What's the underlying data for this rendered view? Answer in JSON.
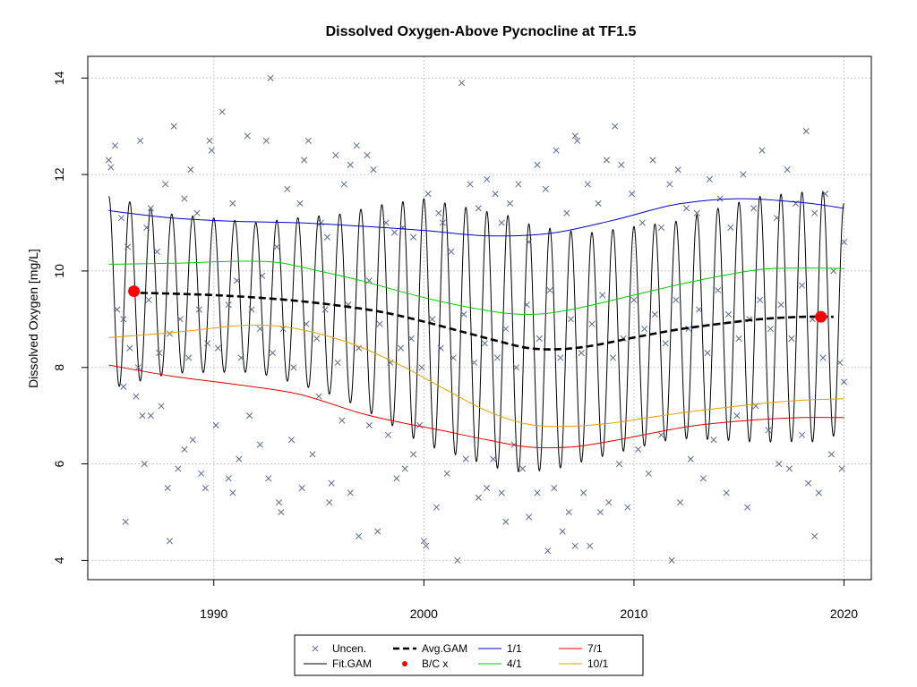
{
  "chart_data": {
    "type": "line",
    "title": "Dissolved Oxygen-Above Pycnocline at TF1.5",
    "xlabel": "",
    "ylabel": "Dissolved Oxygen [mg/L]",
    "xlim": [
      1984,
      2021.3
    ],
    "ylim": [
      3.6,
      14.45
    ],
    "xticks": [
      1990,
      2000,
      2010,
      2020
    ],
    "yticks": [
      4,
      6,
      8,
      10,
      12,
      14
    ],
    "grid": true,
    "legend_position": "bottom",
    "legend": [
      {
        "label": "Uncen.",
        "kind": "cross",
        "color": "#5a6a8a"
      },
      {
        "label": "Fit.GAM",
        "kind": "line",
        "color": "#000000"
      },
      {
        "label": "Avg.GAM",
        "kind": "dashed",
        "color": "#000000"
      },
      {
        "label": "B/C x",
        "kind": "dot",
        "color": "#ff0000"
      },
      {
        "label": "1/1",
        "kind": "line",
        "color": "#0000cc"
      },
      {
        "label": "4/1",
        "kind": "line",
        "color": "#00cc00"
      },
      {
        "label": "7/1",
        "kind": "line",
        "color": "#dd0000"
      },
      {
        "label": "10/1",
        "kind": "line",
        "color": "#e6a000"
      }
    ],
    "series": [
      {
        "name": "1/1",
        "color": "#0000cc",
        "x": [
          1985,
          1988,
          1991,
          1994,
          1997,
          2000,
          2003,
          2006,
          2009,
          2012,
          2015,
          2018,
          2020
        ],
        "y": [
          11.25,
          11.1,
          11.03,
          11.0,
          10.93,
          10.84,
          10.73,
          10.78,
          11.05,
          11.38,
          11.5,
          11.42,
          11.3
        ]
      },
      {
        "name": "4/1",
        "color": "#00cc00",
        "x": [
          1985,
          1988,
          1991,
          1993,
          1995,
          1997,
          2000,
          2003,
          2005,
          2007,
          2010,
          2013,
          2016,
          2018,
          2020
        ],
        "y": [
          10.14,
          10.16,
          10.2,
          10.18,
          10.0,
          9.8,
          9.45,
          9.18,
          9.1,
          9.2,
          9.5,
          9.8,
          10.03,
          10.06,
          10.05
        ]
      },
      {
        "name": "7/1",
        "color": "#dd0000",
        "x": [
          1985,
          1988,
          1991,
          1994,
          1997,
          1999,
          2001,
          2003,
          2005,
          2007,
          2009,
          2011,
          2013,
          2016,
          2018,
          2020
        ],
        "y": [
          8.05,
          7.82,
          7.65,
          7.45,
          7.05,
          6.85,
          6.68,
          6.5,
          6.35,
          6.35,
          6.48,
          6.65,
          6.8,
          6.92,
          6.96,
          6.96
        ]
      },
      {
        "name": "10/1",
        "color": "#e6a000",
        "x": [
          1985,
          1988,
          1991,
          1993,
          1995,
          1997,
          1999,
          2001,
          2003,
          2005,
          2007,
          2009,
          2011,
          2013,
          2016,
          2018,
          2020
        ],
        "y": [
          8.62,
          8.72,
          8.86,
          8.86,
          8.7,
          8.42,
          8.02,
          7.55,
          7.1,
          6.82,
          6.78,
          6.85,
          6.98,
          7.1,
          7.25,
          7.32,
          7.35
        ]
      },
      {
        "name": "Avg.GAM",
        "color": "#000000",
        "dashed": true,
        "x": [
          1986,
          1988,
          1990,
          1992,
          1994,
          1996,
          1998,
          2000,
          2002,
          2003.5,
          2005,
          2006.5,
          2008,
          2010,
          2012,
          2014,
          2016,
          2018,
          2019.5
        ],
        "y": [
          9.55,
          9.53,
          9.5,
          9.45,
          9.38,
          9.28,
          9.15,
          8.95,
          8.72,
          8.55,
          8.4,
          8.38,
          8.45,
          8.62,
          8.78,
          8.9,
          9.0,
          9.05,
          9.05
        ]
      },
      {
        "name": "Fit.GAM",
        "color": "#000000",
        "x_range": [
          1985,
          2020
        ],
        "seasonal_amplitude": [
          2.0,
          1.65,
          1.55,
          1.9,
          2.55,
          2.65,
          2.35,
          2.25,
          2.55,
          2.6,
          2.35
        ],
        "amplitude_years": [
          1985,
          1988,
          1992,
          1996,
          2000,
          2004,
          2008,
          2012,
          2016,
          2019,
          2020
        ]
      },
      {
        "name": "B/C x",
        "color": "#ff0000",
        "x": [
          1986.2,
          2018.9
        ],
        "y": [
          9.58,
          9.05
        ]
      }
    ],
    "points": [
      [
        1985.0,
        12.3
      ],
      [
        1985.1,
        12.15
      ],
      [
        1985.3,
        12.6
      ],
      [
        1985.6,
        11.1
      ],
      [
        1985.9,
        10.5
      ],
      [
        1986.1,
        9.6
      ],
      [
        1986.5,
        12.7
      ],
      [
        1986.8,
        10.9
      ],
      [
        1987.0,
        11.3
      ],
      [
        1987.3,
        10.4
      ],
      [
        1987.7,
        11.8
      ],
      [
        1988.1,
        13.0
      ],
      [
        1988.6,
        11.5
      ],
      [
        1988.9,
        12.1
      ],
      [
        1989.2,
        11.2
      ],
      [
        1989.8,
        12.7
      ],
      [
        1989.9,
        12.5
      ],
      [
        1990.4,
        13.3
      ],
      [
        1990.9,
        11.4
      ],
      [
        1991.1,
        9.8
      ],
      [
        1991.6,
        12.8
      ],
      [
        1992.3,
        9.9
      ],
      [
        1992.5,
        12.7
      ],
      [
        1992.7,
        14.0
      ],
      [
        1993.0,
        10.5
      ],
      [
        1993.5,
        11.7
      ],
      [
        1994.1,
        11.4
      ],
      [
        1994.3,
        12.3
      ],
      [
        1994.5,
        12.7
      ],
      [
        1995.1,
        11.0
      ],
      [
        1995.4,
        10.7
      ],
      [
        1995.8,
        12.4
      ],
      [
        1996.2,
        11.8
      ],
      [
        1996.5,
        12.2
      ],
      [
        1996.8,
        12.6
      ],
      [
        1997.3,
        12.4
      ],
      [
        1997.6,
        12.1
      ],
      [
        1998.2,
        11.0
      ],
      [
        1998.6,
        10.8
      ],
      [
        1999.0,
        10.9
      ],
      [
        1999.5,
        10.7
      ],
      [
        2000.2,
        11.6
      ],
      [
        2000.7,
        11.2
      ],
      [
        2000.9,
        11.0
      ],
      [
        2001.3,
        10.4
      ],
      [
        2001.8,
        13.9
      ],
      [
        2002.2,
        11.8
      ],
      [
        2002.6,
        11.3
      ],
      [
        2003.0,
        11.9
      ],
      [
        2003.4,
        11.6
      ],
      [
        2003.7,
        11.0
      ],
      [
        2004.1,
        11.4
      ],
      [
        2004.5,
        11.8
      ],
      [
        2005.0,
        10.6
      ],
      [
        2005.4,
        12.2
      ],
      [
        2005.8,
        11.7
      ],
      [
        2006.3,
        12.5
      ],
      [
        2006.8,
        11.2
      ],
      [
        2007.2,
        12.8
      ],
      [
        2007.3,
        12.7
      ],
      [
        2007.8,
        11.8
      ],
      [
        2008.3,
        11.4
      ],
      [
        2008.7,
        12.3
      ],
      [
        2009.1,
        13.0
      ],
      [
        2009.4,
        12.2
      ],
      [
        2009.9,
        11.6
      ],
      [
        2010.4,
        11.0
      ],
      [
        2010.9,
        12.3
      ],
      [
        2011.3,
        10.9
      ],
      [
        2011.7,
        11.8
      ],
      [
        2012.1,
        12.1
      ],
      [
        2012.5,
        11.3
      ],
      [
        2013.0,
        11.2
      ],
      [
        2013.6,
        11.9
      ],
      [
        2014.1,
        11.5
      ],
      [
        2014.6,
        10.9
      ],
      [
        2015.2,
        12.0
      ],
      [
        2015.7,
        11.3
      ],
      [
        2016.1,
        12.5
      ],
      [
        2016.8,
        11.1
      ],
      [
        2017.3,
        12.1
      ],
      [
        2017.7,
        11.4
      ],
      [
        2018.2,
        12.9
      ],
      [
        2018.6,
        11.2
      ],
      [
        2019.1,
        11.6
      ],
      [
        2019.5,
        10.0
      ],
      [
        2020.0,
        10.6
      ],
      [
        1985.4,
        9.2
      ],
      [
        1985.7,
        9.0
      ],
      [
        1986.0,
        8.4
      ],
      [
        1986.4,
        8.0
      ],
      [
        1986.9,
        9.4
      ],
      [
        1987.4,
        8.3
      ],
      [
        1987.9,
        8.7
      ],
      [
        1988.4,
        9.0
      ],
      [
        1988.8,
        8.2
      ],
      [
        1989.3,
        9.2
      ],
      [
        1989.7,
        8.5
      ],
      [
        1990.2,
        8.4
      ],
      [
        1990.7,
        9.3
      ],
      [
        1991.3,
        8.2
      ],
      [
        1991.8,
        9.2
      ],
      [
        1992.2,
        8.8
      ],
      [
        1992.8,
        8.3
      ],
      [
        1993.3,
        8.8
      ],
      [
        1993.8,
        8.0
      ],
      [
        1994.4,
        8.9
      ],
      [
        1994.9,
        8.6
      ],
      [
        1995.3,
        9.2
      ],
      [
        1995.9,
        8.1
      ],
      [
        1996.4,
        9.3
      ],
      [
        1996.9,
        8.4
      ],
      [
        1997.4,
        9.8
      ],
      [
        1997.9,
        8.9
      ],
      [
        1998.4,
        8.1
      ],
      [
        1998.9,
        8.4
      ],
      [
        1999.4,
        8.6
      ],
      [
        1999.9,
        8.0
      ],
      [
        2000.4,
        9.0
      ],
      [
        2000.8,
        8.4
      ],
      [
        2001.4,
        8.2
      ],
      [
        2001.9,
        9.1
      ],
      [
        2002.4,
        8.1
      ],
      [
        2002.9,
        8.5
      ],
      [
        2003.5,
        8.2
      ],
      [
        2003.9,
        8.8
      ],
      [
        2004.4,
        8.0
      ],
      [
        2004.9,
        9.3
      ],
      [
        2005.5,
        8.6
      ],
      [
        2006.0,
        9.6
      ],
      [
        2006.5,
        8.2
      ],
      [
        2007.0,
        9.0
      ],
      [
        2007.5,
        8.3
      ],
      [
        2008.0,
        8.9
      ],
      [
        2008.5,
        9.5
      ],
      [
        2009.0,
        8.2
      ],
      [
        2009.5,
        8.6
      ],
      [
        2010.0,
        9.4
      ],
      [
        2010.5,
        8.8
      ],
      [
        2011.0,
        9.1
      ],
      [
        2011.5,
        8.5
      ],
      [
        2012.0,
        9.4
      ],
      [
        2012.6,
        8.8
      ],
      [
        2013.1,
        9.2
      ],
      [
        2013.5,
        8.3
      ],
      [
        2014.0,
        9.6
      ],
      [
        2014.5,
        9.1
      ],
      [
        2015.0,
        8.6
      ],
      [
        2015.5,
        9.0
      ],
      [
        2016.0,
        9.4
      ],
      [
        2016.5,
        8.8
      ],
      [
        2017.0,
        9.3
      ],
      [
        2017.5,
        8.6
      ],
      [
        2018.0,
        9.7
      ],
      [
        2018.5,
        9.0
      ],
      [
        2019.0,
        8.2
      ],
      [
        2019.8,
        8.1
      ],
      [
        1985.7,
        7.6
      ],
      [
        1985.8,
        4.8
      ],
      [
        1986.3,
        7.4
      ],
      [
        1986.6,
        7.0
      ],
      [
        1986.7,
        6.0
      ],
      [
        1987.0,
        7.0
      ],
      [
        1987.5,
        7.2
      ],
      [
        1987.8,
        5.5
      ],
      [
        1987.9,
        4.4
      ],
      [
        1988.3,
        5.9
      ],
      [
        1988.6,
        6.3
      ],
      [
        1989.0,
        6.5
      ],
      [
        1989.4,
        5.8
      ],
      [
        1989.6,
        5.5
      ],
      [
        1990.1,
        6.8
      ],
      [
        1990.7,
        5.7
      ],
      [
        1990.9,
        5.4
      ],
      [
        1991.2,
        6.1
      ],
      [
        1991.7,
        7.0
      ],
      [
        1992.2,
        6.4
      ],
      [
        1992.6,
        5.7
      ],
      [
        1993.1,
        5.2
      ],
      [
        1993.2,
        5.0
      ],
      [
        1993.7,
        6.5
      ],
      [
        1994.2,
        5.5
      ],
      [
        1994.7,
        6.2
      ],
      [
        1995.0,
        7.4
      ],
      [
        1995.5,
        5.2
      ],
      [
        1995.6,
        5.6
      ],
      [
        1996.1,
        6.9
      ],
      [
        1996.5,
        5.4
      ],
      [
        1996.9,
        4.5
      ],
      [
        1997.4,
        6.8
      ],
      [
        1997.8,
        4.6
      ],
      [
        1998.3,
        6.6
      ],
      [
        1998.7,
        5.7
      ],
      [
        1999.1,
        5.9
      ],
      [
        1999.5,
        6.2
      ],
      [
        1999.8,
        6.8
      ],
      [
        2000.0,
        4.4
      ],
      [
        2000.1,
        4.3
      ],
      [
        2000.6,
        5.1
      ],
      [
        2001.1,
        5.8
      ],
      [
        2001.6,
        4.0
      ],
      [
        2002.0,
        6.1
      ],
      [
        2002.6,
        5.3
      ],
      [
        2003.0,
        5.5
      ],
      [
        2003.3,
        6.1
      ],
      [
        2003.7,
        5.4
      ],
      [
        2003.9,
        4.8
      ],
      [
        2004.3,
        6.4
      ],
      [
        2004.7,
        5.9
      ],
      [
        2005.0,
        4.9
      ],
      [
        2005.4,
        5.4
      ],
      [
        2005.9,
        4.2
      ],
      [
        2006.2,
        5.5
      ],
      [
        2006.6,
        4.6
      ],
      [
        2006.9,
        5.0
      ],
      [
        2007.2,
        4.3
      ],
      [
        2007.6,
        5.4
      ],
      [
        2007.9,
        4.3
      ],
      [
        2008.4,
        5.0
      ],
      [
        2008.8,
        5.2
      ],
      [
        2009.3,
        6.0
      ],
      [
        2009.7,
        5.1
      ],
      [
        2010.2,
        6.3
      ],
      [
        2010.7,
        5.8
      ],
      [
        2011.3,
        6.6
      ],
      [
        2011.8,
        4.0
      ],
      [
        2012.2,
        5.2
      ],
      [
        2012.7,
        6.1
      ],
      [
        2013.3,
        5.7
      ],
      [
        2013.8,
        6.5
      ],
      [
        2014.4,
        5.4
      ],
      [
        2014.9,
        7.0
      ],
      [
        2015.4,
        5.1
      ],
      [
        2015.8,
        7.2
      ],
      [
        2016.4,
        6.7
      ],
      [
        2016.9,
        6.0
      ],
      [
        2017.4,
        5.9
      ],
      [
        2018.0,
        6.6
      ],
      [
        2018.3,
        5.6
      ],
      [
        2018.6,
        4.5
      ],
      [
        2018.8,
        5.4
      ],
      [
        2019.4,
        6.2
      ],
      [
        2019.9,
        5.9
      ],
      [
        2020.0,
        7.7
      ]
    ]
  }
}
